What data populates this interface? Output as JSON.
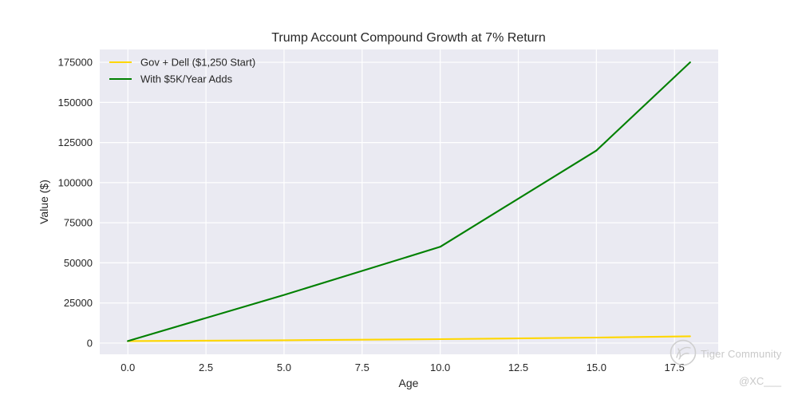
{
  "chart_data": {
    "type": "line",
    "title": "Trump Account Compound Growth at 7% Return",
    "xlabel": "Age",
    "ylabel": "Value ($)",
    "xlim": [
      -0.9,
      18.9
    ],
    "ylim": [
      -7000,
      183000
    ],
    "xticks": [
      0.0,
      2.5,
      5.0,
      7.5,
      10.0,
      12.5,
      15.0,
      17.5
    ],
    "xtick_labels": [
      "0.0",
      "2.5",
      "5.0",
      "7.5",
      "10.0",
      "12.5",
      "15.0",
      "17.5"
    ],
    "yticks": [
      0,
      25000,
      50000,
      75000,
      100000,
      125000,
      150000,
      175000
    ],
    "ytick_labels": [
      "0",
      "25000",
      "50000",
      "75000",
      "100000",
      "125000",
      "150000",
      "175000"
    ],
    "grid": true,
    "legend_position": "top-left",
    "series": [
      {
        "name": "Gov + Dell ($1,250 Start)",
        "color": "#ffd700",
        "x": [
          0,
          5,
          10,
          15,
          18
        ],
        "y": [
          1250,
          1750,
          2450,
          3450,
          4250
        ]
      },
      {
        "name": "With $5K/Year Adds",
        "color": "#008000",
        "x": [
          0,
          5,
          10,
          15,
          18
        ],
        "y": [
          1250,
          30000,
          60000,
          120000,
          175000
        ]
      }
    ]
  },
  "watermark": {
    "text": "Tiger Community",
    "handle": "@XC___",
    "logo_icon": "tiger-logo-icon"
  }
}
